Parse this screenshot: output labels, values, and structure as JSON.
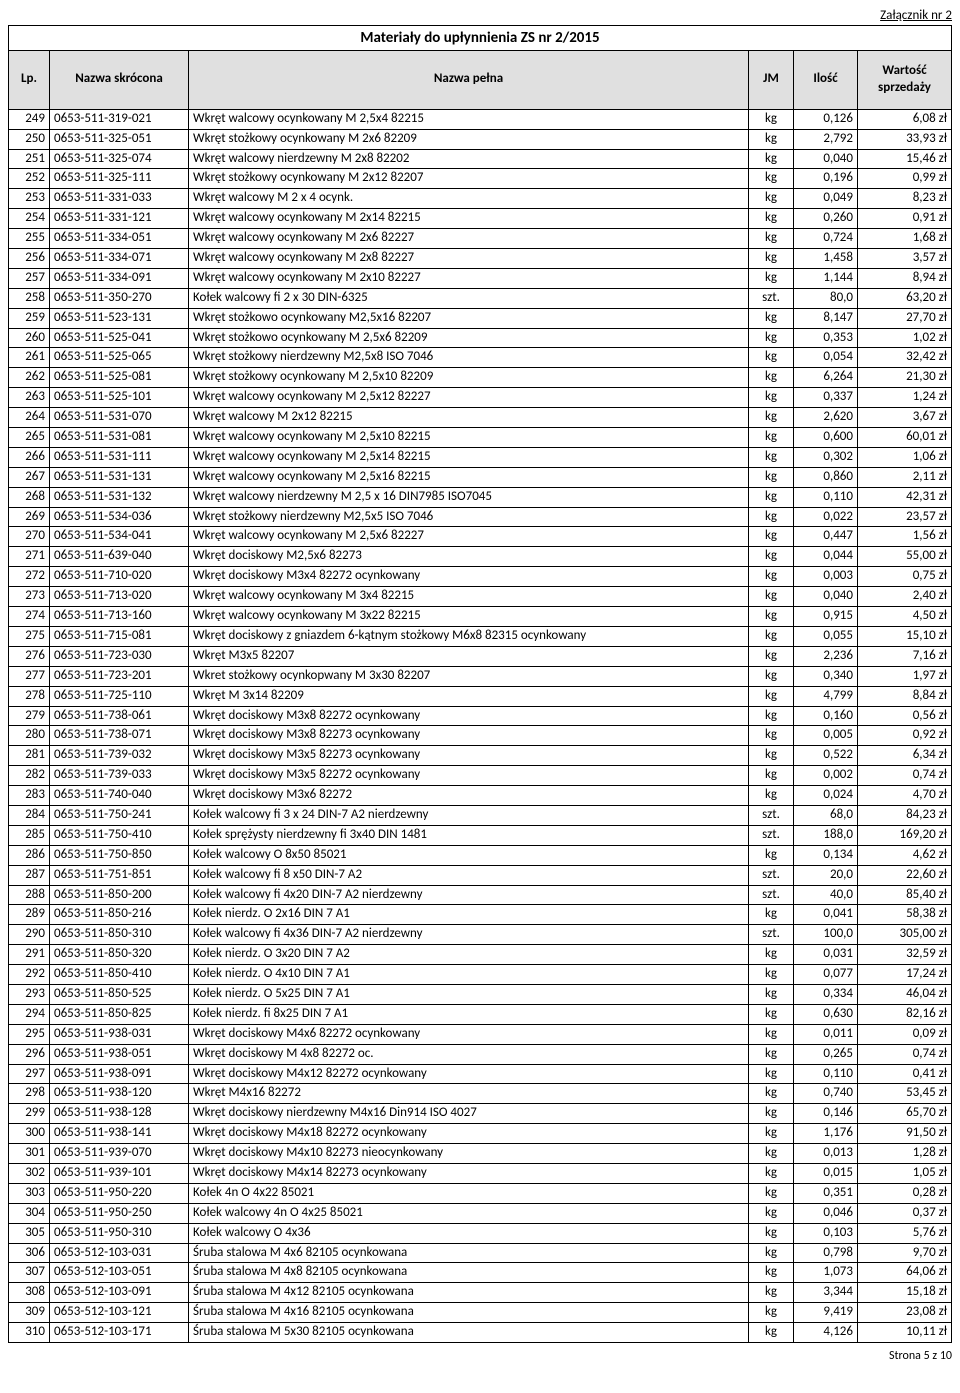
{
  "attachment_label": "Załącznik nr 2",
  "title": "Materiały do upłynnienia ZS nr 2/2015",
  "footer": "Strona 5 z 10",
  "headers": {
    "lp": "Lp.",
    "short": "Nazwa skrócona",
    "full": "Nazwa pełna",
    "jm": "JM",
    "qty": "Ilość",
    "val": "Wartość sprzedaży"
  },
  "rows": [
    {
      "lp": "249",
      "short": "0653-511-319-021",
      "full": "Wkręt walcowy ocynkowany  M 2,5x4 82215",
      "jm": "kg",
      "qty": "0,126",
      "val": "6,08 zł"
    },
    {
      "lp": "250",
      "short": "0653-511-325-051",
      "full": "Wkręt  stożkowy ocynkowany M 2x6 82209",
      "jm": "kg",
      "qty": "2,792",
      "val": "33,93 zł"
    },
    {
      "lp": "251",
      "short": "0653-511-325-074",
      "full": "Wkręt walcowy nierdzewny M 2x8 82202",
      "jm": "kg",
      "qty": "0,040",
      "val": "15,46 zł"
    },
    {
      "lp": "252",
      "short": "0653-511-325-111",
      "full": "Wkręt stożkowy ocynkowany M 2x12 82207",
      "jm": "kg",
      "qty": "0,196",
      "val": "0,99 zł"
    },
    {
      "lp": "253",
      "short": "0653-511-331-033",
      "full": "Wkręt walcowy M 2 x 4 ocynk.",
      "jm": "kg",
      "qty": "0,049",
      "val": "8,23 zł"
    },
    {
      "lp": "254",
      "short": "0653-511-331-121",
      "full": "Wkręt walcowy ocynkowany  M 2x14 82215",
      "jm": "kg",
      "qty": "0,260",
      "val": "0,91 zł"
    },
    {
      "lp": "255",
      "short": "0653-511-334-051",
      "full": "Wkręt walcowy ocynkowany M 2x6 82227",
      "jm": "kg",
      "qty": "0,724",
      "val": "1,68 zł"
    },
    {
      "lp": "256",
      "short": "0653-511-334-071",
      "full": "Wkręt walcowy ocynkowany M 2x8 82227",
      "jm": "kg",
      "qty": "1,458",
      "val": "3,57 zł"
    },
    {
      "lp": "257",
      "short": "0653-511-334-091",
      "full": "Wkręt walcowy ocynkowany M 2x10 82227",
      "jm": "kg",
      "qty": "1,144",
      "val": "8,94 zł"
    },
    {
      "lp": "258",
      "short": "0653-511-350-270",
      "full": "Kołek walcowy fi 2 x 30 DIN-6325",
      "jm": "szt.",
      "qty": "80,0",
      "val": "63,20 zł"
    },
    {
      "lp": "259",
      "short": "0653-511-523-131",
      "full": "Wkręt stożkowo ocynkowany M2,5x16 82207",
      "jm": "kg",
      "qty": "8,147",
      "val": "27,70 zł"
    },
    {
      "lp": "260",
      "short": "0653-511-525-041",
      "full": "Wkręt stożkowo ocynkowany M 2,5x6 82209",
      "jm": "kg",
      "qty": "0,353",
      "val": "1,02 zł"
    },
    {
      "lp": "261",
      "short": "0653-511-525-065",
      "full": "Wkręt stożkowy nierdzewny M2,5x8 ISO 7046",
      "jm": "kg",
      "qty": "0,054",
      "val": "32,42 zł"
    },
    {
      "lp": "262",
      "short": "0653-511-525-081",
      "full": "Wkręt stożkowy ocynkowany M 2,5x10 82209",
      "jm": "kg",
      "qty": "6,264",
      "val": "21,30 zł"
    },
    {
      "lp": "263",
      "short": "0653-511-525-101",
      "full": "Wkręt walcowy ocynkowany  M 2,5x12 82227",
      "jm": "kg",
      "qty": "0,337",
      "val": "1,24 zł"
    },
    {
      "lp": "264",
      "short": "0653-511-531-070",
      "full": "Wkręt walcowy M 2x12 82215",
      "jm": "kg",
      "qty": "2,620",
      "val": "3,67 zł"
    },
    {
      "lp": "265",
      "short": "0653-511-531-081",
      "full": "Wkręt walcowy ocynkowany  M 2,5x10 82215",
      "jm": "kg",
      "qty": "0,600",
      "val": "60,01 zł"
    },
    {
      "lp": "266",
      "short": "0653-511-531-111",
      "full": "Wkręt walcowy ocynkowany  M 2,5x14 82215",
      "jm": "kg",
      "qty": "0,302",
      "val": "1,06 zł"
    },
    {
      "lp": "267",
      "short": "0653-511-531-131",
      "full": "Wkręt walcowy ocynkowany  M 2,5x16 82215",
      "jm": "kg",
      "qty": "0,860",
      "val": "2,11 zł"
    },
    {
      "lp": "268",
      "short": "0653-511-531-132",
      "full": "Wkręt walcowy nierdzewny M 2,5 x 16  DIN7985 ISO7045",
      "jm": "kg",
      "qty": "0,110",
      "val": "42,31 zł"
    },
    {
      "lp": "269",
      "short": "0653-511-534-036",
      "full": "Wkręt stożkowy nierdzewny M2,5x5  ISO 7046",
      "jm": "kg",
      "qty": "0,022",
      "val": "23,57 zł"
    },
    {
      "lp": "270",
      "short": "0653-511-534-041",
      "full": "Wkręt walcowy ocynkowany  M 2,5x6 82227",
      "jm": "kg",
      "qty": "0,447",
      "val": "1,56 zł"
    },
    {
      "lp": "271",
      "short": "0653-511-639-040",
      "full": "Wkręt dociskowy M2,5x6 82273",
      "jm": "kg",
      "qty": "0,044",
      "val": "55,00 zł"
    },
    {
      "lp": "272",
      "short": "0653-511-710-020",
      "full": "Wkręt dociskowy M3x4 82272 ocynkowany",
      "jm": "kg",
      "qty": "0,003",
      "val": "0,75 zł"
    },
    {
      "lp": "273",
      "short": "0653-511-713-020",
      "full": "Wkręt walcowy ocynkowany  M 3x4 82215",
      "jm": "kg",
      "qty": "0,040",
      "val": "2,40 zł"
    },
    {
      "lp": "274",
      "short": "0653-511-713-160",
      "full": "Wkręt walcowy ocynkowany  M 3x22 82215",
      "jm": "kg",
      "qty": "0,915",
      "val": "4,50 zł"
    },
    {
      "lp": "275",
      "short": "0653-511-715-081",
      "full": "Wkręt dociskowy z gniazdem 6-kątnym stożkowy M6x8 82315 ocynkowany",
      "jm": "kg",
      "qty": "0,055",
      "val": "15,10 zł"
    },
    {
      "lp": "276",
      "short": "0653-511-723-030",
      "full": "Wkręt M3x5 82207",
      "jm": "kg",
      "qty": "2,236",
      "val": "7,16 zł"
    },
    {
      "lp": "277",
      "short": "0653-511-723-201",
      "full": "Wkret stożkowy ocynkopwany M 3x30 82207",
      "jm": "kg",
      "qty": "0,340",
      "val": "1,97 zł"
    },
    {
      "lp": "278",
      "short": "0653-511-725-110",
      "full": "Wkręt M 3x14 82209",
      "jm": "kg",
      "qty": "4,799",
      "val": "8,84 zł"
    },
    {
      "lp": "279",
      "short": "0653-511-738-061",
      "full": "Wkręt dociskowy M3x8 82272 ocynkowany",
      "jm": "kg",
      "qty": "0,160",
      "val": "0,56 zł"
    },
    {
      "lp": "280",
      "short": "0653-511-738-071",
      "full": "Wkręt dociskowy M3x8 82273 ocynkowany",
      "jm": "kg",
      "qty": "0,005",
      "val": "0,92 zł"
    },
    {
      "lp": "281",
      "short": "0653-511-739-032",
      "full": "Wkręt dociskowy M3x5 82273 ocynkowany",
      "jm": "kg",
      "qty": "0,522",
      "val": "6,34 zł"
    },
    {
      "lp": "282",
      "short": "0653-511-739-033",
      "full": "Wkręt dociskowy M3x5 82272 ocynkowany",
      "jm": "kg",
      "qty": "0,002",
      "val": "0,74 zł"
    },
    {
      "lp": "283",
      "short": "0653-511-740-040",
      "full": "Wkręt dociskowy M3x6 82272",
      "jm": "kg",
      "qty": "0,024",
      "val": "4,70 zł"
    },
    {
      "lp": "284",
      "short": "0653-511-750-241",
      "full": "Kołek walcowy fi 3 x 24 DIN-7 A2 nierdzewny",
      "jm": "szt.",
      "qty": "68,0",
      "val": "84,23 zł"
    },
    {
      "lp": "285",
      "short": "0653-511-750-410",
      "full": "Kołek sprężysty nierdzewny fi 3x40 DIN 1481",
      "jm": "szt.",
      "qty": "188,0",
      "val": "169,20 zł"
    },
    {
      "lp": "286",
      "short": "0653-511-750-850",
      "full": "Kołek walcowy O 8x50  85021",
      "jm": "kg",
      "qty": "0,134",
      "val": "4,62 zł"
    },
    {
      "lp": "287",
      "short": "0653-511-751-851",
      "full": "Kołek walcowy fi 8 x50 DIN-7 A2",
      "jm": "szt.",
      "qty": "20,0",
      "val": "22,60 zł"
    },
    {
      "lp": "288",
      "short": "0653-511-850-200",
      "full": "Kołek walcowy fi 4x20 DIN-7 A2 nierdzewny",
      "jm": "szt.",
      "qty": "40,0",
      "val": "85,40 zł"
    },
    {
      "lp": "289",
      "short": "0653-511-850-216",
      "full": "Kołek nierdz.   O 2x16  DIN 7  A1",
      "jm": "kg",
      "qty": "0,041",
      "val": "58,38 zł"
    },
    {
      "lp": "290",
      "short": "0653-511-850-310",
      "full": "Kołek walcowy fi 4x36 DIN-7 A2 nierdzewny",
      "jm": "szt.",
      "qty": "100,0",
      "val": "305,00 zł"
    },
    {
      "lp": "291",
      "short": "0653-511-850-320",
      "full": "Kołek nierdz.   O 3x20  DIN 7  A2",
      "jm": "kg",
      "qty": "0,031",
      "val": "32,59 zł"
    },
    {
      "lp": "292",
      "short": "0653-511-850-410",
      "full": "Kołek nierdz.   O 4x10  DIN 7  A1",
      "jm": "kg",
      "qty": "0,077",
      "val": "17,24 zł"
    },
    {
      "lp": "293",
      "short": "0653-511-850-525",
      "full": "Kołek nierdz.   O 5x25  DIN 7  A1",
      "jm": "kg",
      "qty": "0,334",
      "val": "46,04 zł"
    },
    {
      "lp": "294",
      "short": "0653-511-850-825",
      "full": "Kołek nierdz.  fi 8x25  DIN 7  A1",
      "jm": "kg",
      "qty": "0,630",
      "val": "82,16 zł"
    },
    {
      "lp": "295",
      "short": "0653-511-938-031",
      "full": "Wkręt dociskowy M4x6 82272 ocynkowany",
      "jm": "kg",
      "qty": "0,011",
      "val": "0,09 zł"
    },
    {
      "lp": "296",
      "short": "0653-511-938-051",
      "full": "Wkręt dociskowy M 4x8 82272 oc.",
      "jm": "kg",
      "qty": "0,265",
      "val": "0,74 zł"
    },
    {
      "lp": "297",
      "short": "0653-511-938-091",
      "full": "Wkręt dociskowy M4x12 82272 ocynkowany",
      "jm": "kg",
      "qty": "0,110",
      "val": "0,41 zł"
    },
    {
      "lp": "298",
      "short": "0653-511-938-120",
      "full": "Wkręt M4x16 82272",
      "jm": "kg",
      "qty": "0,740",
      "val": "53,45 zł"
    },
    {
      "lp": "299",
      "short": "0653-511-938-128",
      "full": "Wkręt dociskowy nierdzewny M4x16 Din914 ISO 4027",
      "jm": "kg",
      "qty": "0,146",
      "val": "65,70 zł"
    },
    {
      "lp": "300",
      "short": "0653-511-938-141",
      "full": "Wkręt dociskowy M4x18 82272 ocynkowany",
      "jm": "kg",
      "qty": "1,176",
      "val": "91,50 zł"
    },
    {
      "lp": "301",
      "short": "0653-511-939-070",
      "full": "Wkręt dociskowy M4x10 82273 nieocynkowany",
      "jm": "kg",
      "qty": "0,013",
      "val": "1,28 zł"
    },
    {
      "lp": "302",
      "short": "0653-511-939-101",
      "full": "Wkręt dociskowy M4x14 82273 ocynkowany",
      "jm": "kg",
      "qty": "0,015",
      "val": "1,05 zł"
    },
    {
      "lp": "303",
      "short": "0653-511-950-220",
      "full": "Kołek 4n   O 4x22   85021",
      "jm": "kg",
      "qty": "0,351",
      "val": "0,28 zł"
    },
    {
      "lp": "304",
      "short": "0653-511-950-250",
      "full": "Kołek walcowy  4n  O 4x25    85021",
      "jm": "kg",
      "qty": "0,046",
      "val": "0,37 zł"
    },
    {
      "lp": "305",
      "short": "0653-511-950-310",
      "full": "Kołek walcowy O 4x36",
      "jm": "kg",
      "qty": "0,103",
      "val": "5,76 zł"
    },
    {
      "lp": "306",
      "short": "0653-512-103-031",
      "full": "Śruba stalowa M 4x6  82105 ocynkowana",
      "jm": "kg",
      "qty": "0,798",
      "val": "9,70 zł"
    },
    {
      "lp": "307",
      "short": "0653-512-103-051",
      "full": "Śruba stalowa M 4x8  82105 ocynkowana",
      "jm": "kg",
      "qty": "1,073",
      "val": "64,06 zł"
    },
    {
      "lp": "308",
      "short": "0653-512-103-091",
      "full": "Śruba stalowa M 4x12  82105 ocynkowana",
      "jm": "kg",
      "qty": "3,344",
      "val": "15,18 zł"
    },
    {
      "lp": "309",
      "short": "0653-512-103-121",
      "full": "Śruba stalowa M 4x16  82105 ocynkowana",
      "jm": "kg",
      "qty": "9,419",
      "val": "23,08 zł"
    },
    {
      "lp": "310",
      "short": "0653-512-103-171",
      "full": "Śruba stalowa M 5x30  82105 ocynkowana",
      "jm": "kg",
      "qty": "4,126",
      "val": "10,11 zł"
    }
  ]
}
